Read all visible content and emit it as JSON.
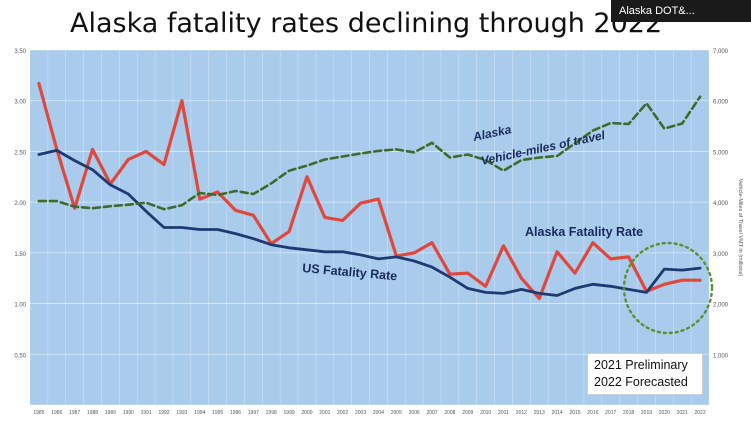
{
  "header": {
    "title": "Alaska fatality rates declining through 2022",
    "participant_name": "Alaska DOT&..."
  },
  "note": {
    "line1": "2021 Preliminary",
    "line2": "2022 Forecasted"
  },
  "colors": {
    "plot_bg": "#a9cbec",
    "alaska_fatality": "#e0483e",
    "us_fatality": "#1f3a73",
    "vmt": "#3d6b2a",
    "circle": "#5d8f2f"
  },
  "chart_data": {
    "type": "line",
    "x": [
      1985,
      1986,
      1987,
      1988,
      1989,
      1990,
      1991,
      1992,
      1993,
      1994,
      1995,
      1996,
      1997,
      1998,
      1999,
      2000,
      2001,
      2002,
      2003,
      2004,
      2005,
      2006,
      2007,
      2008,
      2009,
      2010,
      2011,
      2012,
      2013,
      2014,
      2015,
      2016,
      2017,
      2018,
      2019,
      2020,
      2021,
      2022
    ],
    "xticks": [
      "1985",
      "1986",
      "1987",
      "1988",
      "1989",
      "1990",
      "1991",
      "1992",
      "1993",
      "1994",
      "1995",
      "1996",
      "1997",
      "1998",
      "1999",
      "2000",
      "2001",
      "2002",
      "2003",
      "2004",
      "2005",
      "2006",
      "2007",
      "2008",
      "2009",
      "2010",
      "2011",
      "2012",
      "2013",
      "2014",
      "2015",
      "2016",
      "2017",
      "2018",
      "2019",
      "2020",
      "2021",
      "2022"
    ],
    "ylim": [
      0,
      3.5
    ],
    "yticks": [
      "0.50",
      "1.00",
      "1.50",
      "2.00",
      "2.50",
      "3.00",
      "3.50"
    ],
    "y2lim": [
      0,
      7000
    ],
    "y2ticks": [
      "1,000",
      "2,000",
      "3,000",
      "4,000",
      "5,000",
      "6,000",
      "7,000"
    ],
    "y2label": "Vehicle-Miles of Travel VMT in (millions)",
    "series": [
      {
        "name": "Alaska Fatality Rate",
        "axis": "left",
        "values": [
          3.17,
          2.52,
          1.94,
          2.52,
          2.18,
          2.42,
          2.5,
          2.37,
          3.0,
          2.03,
          2.1,
          1.92,
          1.87,
          1.59,
          1.71,
          2.25,
          1.85,
          1.82,
          1.99,
          2.03,
          1.47,
          1.5,
          1.6,
          1.29,
          1.3,
          1.17,
          1.57,
          1.25,
          1.05,
          1.51,
          1.3,
          1.6,
          1.44,
          1.46,
          1.12,
          1.19,
          1.23,
          1.23
        ]
      },
      {
        "name": "US Fatality Rate",
        "axis": "left",
        "values": [
          2.47,
          2.51,
          2.41,
          2.32,
          2.17,
          2.08,
          1.91,
          1.75,
          1.75,
          1.73,
          1.73,
          1.69,
          1.64,
          1.58,
          1.55,
          1.53,
          1.51,
          1.51,
          1.48,
          1.44,
          1.46,
          1.42,
          1.36,
          1.26,
          1.15,
          1.11,
          1.1,
          1.14,
          1.1,
          1.08,
          1.15,
          1.19,
          1.17,
          1.14,
          1.11,
          1.34,
          1.33,
          1.35
        ]
      },
      {
        "name": "Alaska Vehicle-miles of travel",
        "axis": "right",
        "values": [
          4020,
          4020,
          3910,
          3880,
          3920,
          3950,
          3990,
          3860,
          3940,
          4180,
          4140,
          4220,
          4160,
          4370,
          4620,
          4720,
          4840,
          4900,
          4960,
          5010,
          5040,
          4980,
          5170,
          4880,
          4940,
          4830,
          4620,
          4830,
          4880,
          4910,
          5160,
          5410,
          5560,
          5540,
          5950,
          5450,
          5550,
          6080
        ]
      }
    ]
  }
}
